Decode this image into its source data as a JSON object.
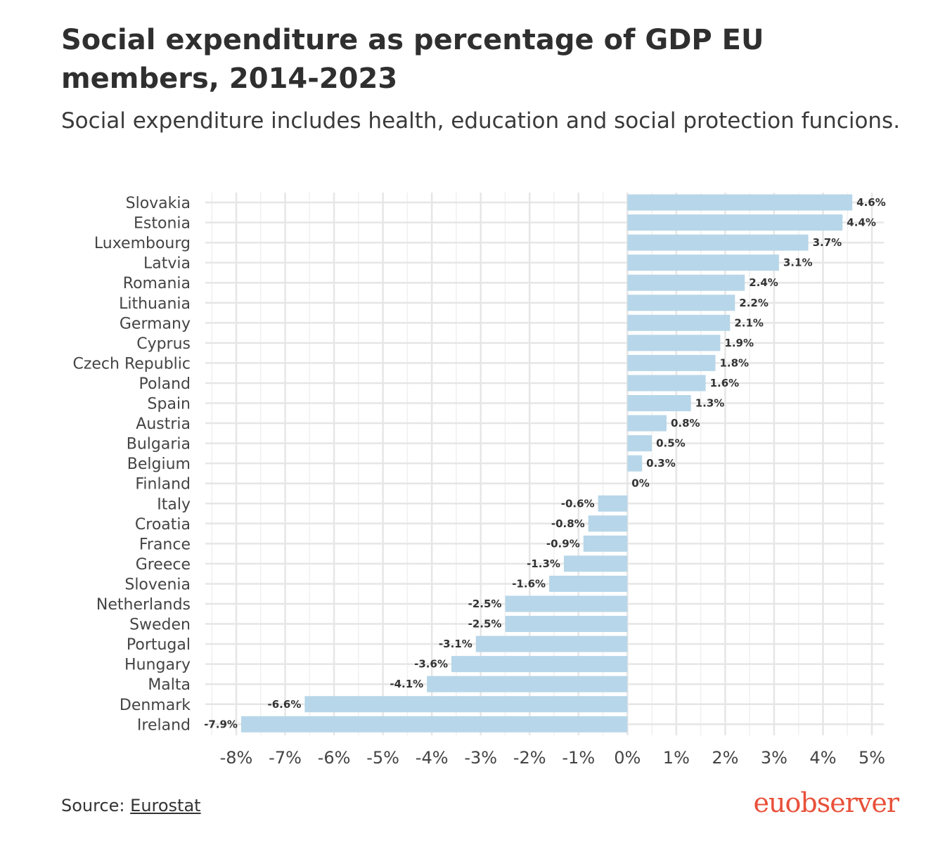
{
  "header": {
    "title": "Social expenditure as percentage of GDP EU members, 2014-2023",
    "subtitle": "Social expenditure includes health, education and social protection funcions."
  },
  "footer": {
    "source_prefix": "Source:",
    "source_link": "Eurostat",
    "logo_text": "euobserver"
  },
  "colors": {
    "bar": "#b7d6e9",
    "grid": "#e6e6e6",
    "logo": "#e8503a"
  },
  "chart_data": {
    "type": "bar",
    "orientation": "horizontal",
    "categories": [
      "Slovakia",
      "Estonia",
      "Luxembourg",
      "Latvia",
      "Romania",
      "Lithuania",
      "Germany",
      "Cyprus",
      "Czech Republic",
      "Poland",
      "Spain",
      "Austria",
      "Bulgaria",
      "Belgium",
      "Finland",
      "Italy",
      "Croatia",
      "France",
      "Greece",
      "Slovenia",
      "Netherlands",
      "Sweden",
      "Portugal",
      "Hungary",
      "Malta",
      "Denmark",
      "Ireland"
    ],
    "values": [
      4.6,
      4.4,
      3.7,
      3.1,
      2.4,
      2.2,
      2.1,
      1.9,
      1.8,
      1.6,
      1.3,
      0.8,
      0.5,
      0.3,
      0,
      -0.6,
      -0.8,
      -0.9,
      -1.3,
      -1.6,
      -2.5,
      -2.5,
      -3.1,
      -3.6,
      -4.1,
      -6.6,
      -7.9
    ],
    "data_labels": [
      "4.6%",
      "4.4%",
      "3.7%",
      "3.1%",
      "2.4%",
      "2.2%",
      "2.1%",
      "1.9%",
      "1.8%",
      "1.6%",
      "1.3%",
      "0.8%",
      "0.5%",
      "0.3%",
      "0%",
      "-0.6%",
      "-0.8%",
      "-0.9%",
      "-1.3%",
      "-1.6%",
      "-2.5%",
      "-2.5%",
      "-3.1%",
      "-3.6%",
      "-4.1%",
      "-6.6%",
      "-7.9%"
    ],
    "x_ticks": [
      -8,
      -7,
      -6,
      -5,
      -4,
      -3,
      -2,
      -1,
      0,
      1,
      2,
      3,
      4,
      5
    ],
    "x_tick_labels": [
      "-8%",
      "-7%",
      "-6%",
      "-5%",
      "-4%",
      "-3%",
      "-2%",
      "-1%",
      "0%",
      "1%",
      "2%",
      "3%",
      "4%",
      "5%"
    ],
    "xlim": [
      -8.6,
      5.3
    ],
    "grid": true,
    "legend": "none"
  }
}
